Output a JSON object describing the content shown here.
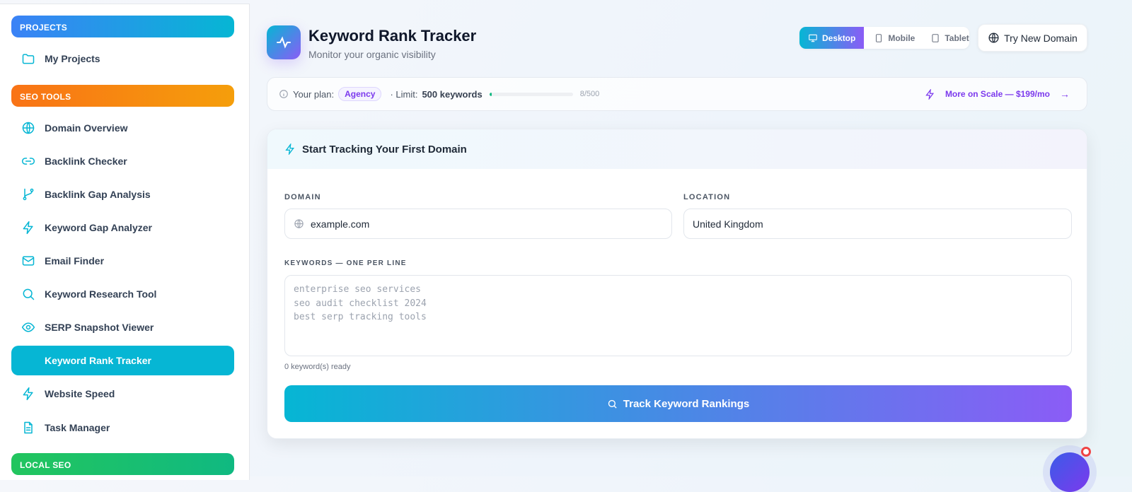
{
  "sidebar": {
    "sections": [
      {
        "label": "PROJECTS",
        "gradient": [
          "#3b82f6",
          "#06b6d4"
        ]
      },
      {
        "label": "SEO TOOLS",
        "gradient": [
          "#f97316",
          "#f59e0b"
        ]
      },
      {
        "label": "LOCAL SEO",
        "gradient": [
          "#22c55e",
          "#10b981"
        ]
      }
    ],
    "items": [
      {
        "label": "My Projects",
        "icon": "folder-icon"
      },
      {
        "label": "Domain Overview",
        "icon": "globe-icon"
      },
      {
        "label": "Backlink Checker",
        "icon": "link-icon"
      },
      {
        "label": "Backlink Gap Analysis",
        "icon": "git-branch-icon"
      },
      {
        "label": "Keyword Gap Analyzer",
        "icon": "zap-icon"
      },
      {
        "label": "Email Finder",
        "icon": "mail-icon"
      },
      {
        "label": "Keyword Research Tool",
        "icon": "search-icon"
      },
      {
        "label": "SERP Snapshot Viewer",
        "icon": "eye-icon"
      },
      {
        "label": "Keyword Rank Tracker",
        "icon": "activity-icon",
        "active": true
      },
      {
        "label": "Website Speed",
        "icon": "zap-icon"
      },
      {
        "label": "Task Manager",
        "icon": "file-text-icon"
      }
    ]
  },
  "header": {
    "title": "Keyword Rank Tracker",
    "subtitle": "Monitor your organic visibility",
    "devices": [
      {
        "label": "Desktop",
        "selected": true
      },
      {
        "label": "Mobile"
      },
      {
        "label": "Tablet"
      }
    ],
    "try_domain": "Try New Domain"
  },
  "plan": {
    "prefix": "Your plan:",
    "plan": "Agency",
    "limit_prefix": "· Limit:",
    "limit": "500 keywords",
    "usage": "8/500",
    "usage_fraction": 0.016,
    "upgrade": "More on Scale — $199/mo"
  },
  "form": {
    "title": "Start Tracking Your First Domain",
    "domain_label": "DOMAIN",
    "domain_value": "example.com",
    "location_label": "LOCATION",
    "location_value": "United Kingdom",
    "keywords_label": "KEYWORDS — ONE PER LINE",
    "keywords_placeholder": "enterprise seo services\nseo audit checklist 2024\nbest serp tracking tools",
    "count": "0 keyword(s) ready",
    "submit": "Track Keyword Rankings"
  },
  "colors": {
    "accent": "#06b6d4",
    "purple": "#8b5cf6"
  }
}
